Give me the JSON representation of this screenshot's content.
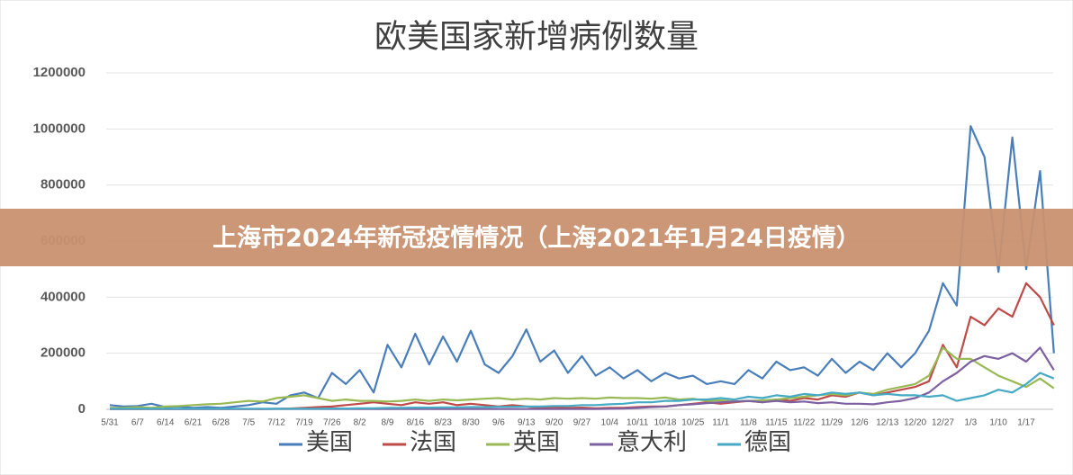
{
  "chart_data": {
    "type": "line",
    "title": "欧美国家新增病例数量",
    "categories": [
      "5/31",
      null,
      "6/7",
      null,
      "6/14",
      null,
      "6/21",
      null,
      "6/28",
      null,
      "7/5",
      null,
      "7/12",
      null,
      "7/19",
      null,
      "7/26",
      null,
      "8/2",
      null,
      "8/9",
      null,
      "8/16",
      null,
      "8/23",
      null,
      "8/30",
      null,
      "9/6",
      null,
      "9/13",
      null,
      "9/20",
      null,
      "9/27",
      null,
      "10/4",
      null,
      "10/11",
      null,
      "10/18",
      null,
      "10/25",
      null,
      "11/1",
      null,
      "11/8",
      null,
      "11/15",
      null,
      "11/22",
      null,
      "11/29",
      null,
      "12/6",
      null,
      "12/13",
      null,
      "12/20",
      null,
      "12/27",
      null,
      "1/3",
      null,
      "1/10",
      null,
      "1/17",
      null,
      null
    ],
    "series": [
      {
        "name": "美国",
        "color": "#4a7ebb",
        "values": [
          15000,
          10000,
          12000,
          20000,
          8000,
          10000,
          5000,
          8000,
          5000,
          10000,
          15000,
          25000,
          20000,
          50000,
          60000,
          40000,
          130000,
          90000,
          140000,
          60000,
          230000,
          150000,
          270000,
          160000,
          260000,
          170000,
          280000,
          160000,
          130000,
          190000,
          285000,
          170000,
          210000,
          130000,
          190000,
          120000,
          150000,
          110000,
          140000,
          100000,
          130000,
          110000,
          120000,
          90000,
          100000,
          90000,
          140000,
          110000,
          170000,
          140000,
          150000,
          120000,
          180000,
          130000,
          170000,
          140000,
          200000,
          150000,
          200000,
          280000,
          450000,
          370000,
          1010000,
          900000,
          490000,
          970000,
          500000,
          850000,
          200000
        ]
      },
      {
        "name": "法国",
        "color": "#be4b48",
        "values": [
          1000,
          1000,
          1000,
          1000,
          1000,
          1000,
          1000,
          1000,
          1000,
          1000,
          1000,
          1000,
          2000,
          3000,
          5000,
          8000,
          10000,
          15000,
          20000,
          25000,
          20000,
          15000,
          25000,
          20000,
          25000,
          15000,
          20000,
          15000,
          10000,
          15000,
          10000,
          5000,
          8000,
          5000,
          6000,
          4000,
          5000,
          5000,
          8000,
          10000,
          10000,
          15000,
          20000,
          25000,
          20000,
          25000,
          30000,
          25000,
          35000,
          30000,
          40000,
          35000,
          50000,
          45000,
          60000,
          50000,
          60000,
          70000,
          80000,
          100000,
          230000,
          150000,
          330000,
          300000,
          360000,
          330000,
          450000,
          400000,
          300000
        ]
      },
      {
        "name": "英国",
        "color": "#98b954",
        "values": [
          5000,
          5000,
          8000,
          5000,
          10000,
          12000,
          15000,
          18000,
          20000,
          25000,
          30000,
          28000,
          40000,
          45000,
          50000,
          40000,
          30000,
          35000,
          30000,
          30000,
          28000,
          30000,
          35000,
          30000,
          35000,
          32000,
          35000,
          38000,
          40000,
          35000,
          38000,
          35000,
          40000,
          38000,
          40000,
          38000,
          42000,
          40000,
          40000,
          38000,
          42000,
          35000,
          38000,
          30000,
          32000,
          28000,
          30000,
          32000,
          35000,
          40000,
          45000,
          50000,
          55000,
          50000,
          60000,
          55000,
          70000,
          80000,
          90000,
          120000,
          220000,
          180000,
          180000,
          150000,
          120000,
          100000,
          80000,
          110000,
          75000
        ]
      },
      {
        "name": "意大利",
        "color": "#7d60a0",
        "values": [
          1000,
          1000,
          1000,
          1000,
          1000,
          1000,
          1000,
          1000,
          1000,
          1000,
          1000,
          1000,
          1000,
          1000,
          1000,
          1000,
          1000,
          1000,
          1000,
          1000,
          1000,
          1000,
          1000,
          1000,
          1000,
          1000,
          1000,
          1000,
          1000,
          1000,
          1000,
          1000,
          1000,
          1000,
          1000,
          1000,
          2000,
          3000,
          5000,
          8000,
          10000,
          15000,
          18000,
          22000,
          25000,
          28000,
          30000,
          25000,
          30000,
          25000,
          28000,
          22000,
          25000,
          20000,
          20000,
          18000,
          25000,
          30000,
          40000,
          60000,
          100000,
          130000,
          170000,
          190000,
          180000,
          200000,
          170000,
          220000,
          140000
        ]
      },
      {
        "name": "德国",
        "color": "#46aac5",
        "values": [
          2000,
          2000,
          2000,
          2000,
          2000,
          2000,
          2000,
          2000,
          2000,
          2000,
          2000,
          2000,
          2000,
          2000,
          2000,
          2000,
          3000,
          3000,
          4000,
          4000,
          5000,
          5000,
          6000,
          6000,
          7000,
          7000,
          8000,
          8000,
          9000,
          9000,
          10000,
          10000,
          12000,
          12000,
          15000,
          15000,
          18000,
          20000,
          25000,
          25000,
          30000,
          30000,
          35000,
          35000,
          40000,
          35000,
          45000,
          40000,
          50000,
          45000,
          55000,
          50000,
          60000,
          55000,
          60000,
          50000,
          55000,
          50000,
          50000,
          45000,
          50000,
          30000,
          40000,
          50000,
          70000,
          60000,
          90000,
          130000,
          110000
        ]
      }
    ],
    "ylim": [
      0,
      1200000
    ],
    "yticks": [
      0,
      200000,
      400000,
      600000,
      800000,
      1000000,
      1200000
    ],
    "grid": true
  },
  "banner": "上海市2024年新冠疫情情况（上海2021年1月24日疫情）"
}
